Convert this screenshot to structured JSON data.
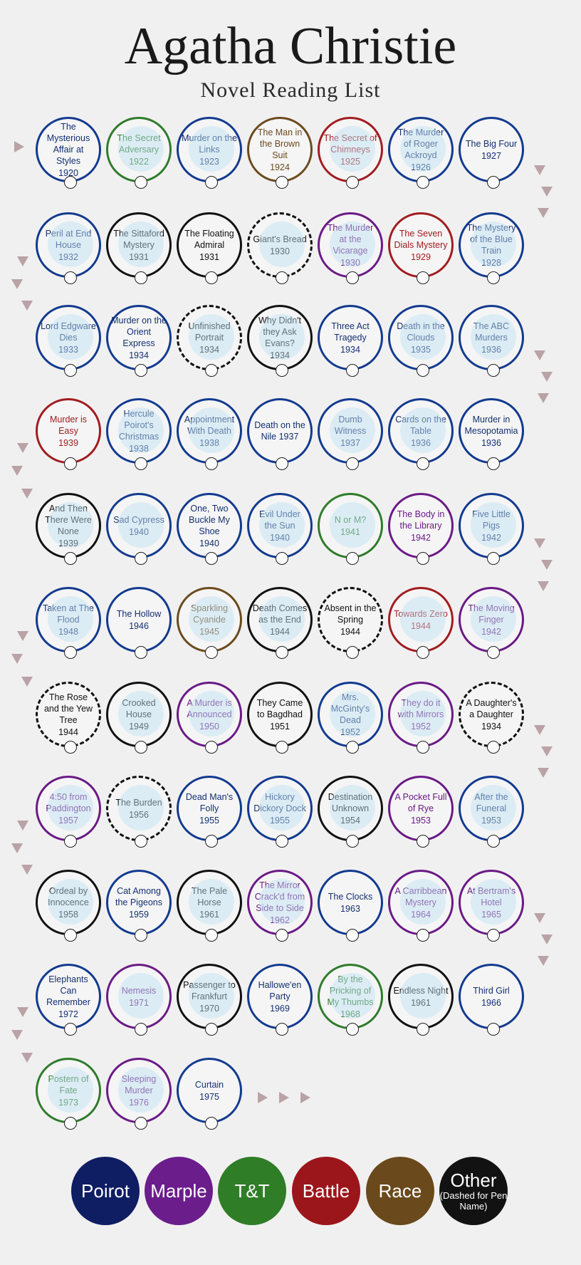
{
  "title": "Agatha Christie",
  "subtitle": "Novel Reading List",
  "books": [
    {
      "title": "The Mysterious Affair at Styles",
      "year": "1920",
      "series": "poirot"
    },
    {
      "title": "The Secret Adversary",
      "year": "1922",
      "series": "tt"
    },
    {
      "title": "Murder on the Links",
      "year": "1923",
      "series": "poirot"
    },
    {
      "title": "The Man in the Brown Suit",
      "year": "1924",
      "series": "race"
    },
    {
      "title": "The Secret of Chimneys",
      "year": "1925",
      "series": "battle"
    },
    {
      "title": "The Murder of Roger Ackroyd",
      "year": "1926",
      "series": "poirot"
    },
    {
      "title": "The Big Four",
      "year": "1927",
      "series": "poirot"
    },
    {
      "title": "Peril at End House",
      "year": "1932",
      "series": "poirot"
    },
    {
      "title": "The Sittaford Mystery",
      "year": "1931",
      "series": "other"
    },
    {
      "title": "The Floating Admiral",
      "year": "1931",
      "series": "other"
    },
    {
      "title": "Giant's Bread",
      "year": "1930",
      "series": "other",
      "dashed": true
    },
    {
      "title": "The Murder at the Vicarage",
      "year": "1930",
      "series": "marple"
    },
    {
      "title": "The Seven Dials Mystery",
      "year": "1929",
      "series": "battle"
    },
    {
      "title": "The Mystery of the Blue Train",
      "year": "1928",
      "series": "poirot"
    },
    {
      "title": "Lord Edgware Dies",
      "year": "1933",
      "series": "poirot"
    },
    {
      "title": "Murder on the Orient Express",
      "year": "1934",
      "series": "poirot"
    },
    {
      "title": "Unfinished Portrait",
      "year": "1934",
      "series": "other",
      "dashed": true
    },
    {
      "title": "Why Didn't they Ask Evans?",
      "year": "1934",
      "series": "other"
    },
    {
      "title": "Three Act Tragedy",
      "year": "1934",
      "series": "poirot"
    },
    {
      "title": "Death in the Clouds",
      "year": "1935",
      "series": "poirot"
    },
    {
      "title": "The ABC Murders",
      "year": "1936",
      "series": "poirot"
    },
    {
      "title": "Murder is Easy",
      "year": "1939",
      "series": "battle"
    },
    {
      "title": "Hercule Poirot's Christmas",
      "year": "1938",
      "series": "poirot"
    },
    {
      "title": "Appointment With Death",
      "year": "1938",
      "series": "poirot"
    },
    {
      "title": "Death on the Nile 1937",
      "year": "",
      "series": "poirot"
    },
    {
      "title": "Dumb Witness",
      "year": "1937",
      "series": "poirot"
    },
    {
      "title": "Cards on the Table",
      "year": "1936",
      "series": "poirot"
    },
    {
      "title": "Murder in Mesopotamia",
      "year": "1936",
      "series": "poirot"
    },
    {
      "title": "And Then There Were None",
      "year": "1939",
      "series": "other"
    },
    {
      "title": "Sad Cypress",
      "year": "1940",
      "series": "poirot"
    },
    {
      "title": "One, Two Buckle My Shoe",
      "year": "1940",
      "series": "poirot"
    },
    {
      "title": "Evil Under the Sun",
      "year": "1940",
      "series": "poirot"
    },
    {
      "title": "N or M?",
      "year": "1941",
      "series": "tt"
    },
    {
      "title": "The Body in the Library",
      "year": "1942",
      "series": "marple"
    },
    {
      "title": "Five Little Pigs",
      "year": "1942",
      "series": "poirot"
    },
    {
      "title": "Taken at The Flood",
      "year": "1948",
      "series": "poirot"
    },
    {
      "title": "The Hollow",
      "year": "1946",
      "series": "poirot"
    },
    {
      "title": "Sparkling Cyanide",
      "year": "1945",
      "series": "race"
    },
    {
      "title": "Death Comes as the End",
      "year": "1944",
      "series": "other"
    },
    {
      "title": "Absent in the Spring",
      "year": "1944",
      "series": "other",
      "dashed": true
    },
    {
      "title": "Towards Zero",
      "year": "1944",
      "series": "battle"
    },
    {
      "title": "The Moving Finger",
      "year": "1942",
      "series": "marple"
    },
    {
      "title": "The Rose and the Yew Tree",
      "year": "1944",
      "series": "other",
      "dashed": true
    },
    {
      "title": "Crooked House",
      "year": "1949",
      "series": "other"
    },
    {
      "title": "A Murder is Announced",
      "year": "1950",
      "series": "marple"
    },
    {
      "title": "They Came to Bagdhad",
      "year": "1951",
      "series": "other"
    },
    {
      "title": "Mrs. McGinty's Dead",
      "year": "1952",
      "series": "poirot"
    },
    {
      "title": "They do it with Mirrors",
      "year": "1952",
      "series": "marple"
    },
    {
      "title": "A Daughter's a Daughter",
      "year": "1934",
      "series": "other",
      "dashed": true
    },
    {
      "title": "4:50 from Paddington",
      "year": "1957",
      "series": "marple"
    },
    {
      "title": "The Burden",
      "year": "1956",
      "series": "other",
      "dashed": true
    },
    {
      "title": "Dead Man's Folly",
      "year": "1955",
      "series": "poirot"
    },
    {
      "title": "Hickory Dickory Dock",
      "year": "1955",
      "series": "poirot"
    },
    {
      "title": "Destination Unknown",
      "year": "1954",
      "series": "other"
    },
    {
      "title": "A Pocket Full of Rye",
      "year": "1953",
      "series": "marple"
    },
    {
      "title": "After the Funeral",
      "year": "1953",
      "series": "poirot"
    },
    {
      "title": "Ordeal by Innocence",
      "year": "1958",
      "series": "other"
    },
    {
      "title": "Cat Among the Pigeons",
      "year": "1959",
      "series": "poirot"
    },
    {
      "title": "The Pale Horse",
      "year": "1961",
      "series": "other"
    },
    {
      "title": "The Mirror Crack'd from Side to Side",
      "year": "1962",
      "series": "marple"
    },
    {
      "title": "The Clocks",
      "year": "1963",
      "series": "poirot"
    },
    {
      "title": "A Carribbean Mystery",
      "year": "1964",
      "series": "marple"
    },
    {
      "title": "At Bertram's Hotel",
      "year": "1965",
      "series": "marple"
    },
    {
      "title": "Elephants Can Remember",
      "year": "1972",
      "series": "poirot"
    },
    {
      "title": "Nemesis",
      "year": "1971",
      "series": "marple"
    },
    {
      "title": "Passenger to Frankfurt",
      "year": "1970",
      "series": "other"
    },
    {
      "title": "Hallowe'en Party",
      "year": "1969",
      "series": "poirot"
    },
    {
      "title": "By the Pricking of My Thumbs",
      "year": "1968",
      "series": "tt"
    },
    {
      "title": "Endless Night",
      "year": "1961",
      "series": "other"
    },
    {
      "title": "Third Girl",
      "year": "1966",
      "series": "poirot"
    },
    {
      "title": "Postern of Fate",
      "year": "1973",
      "series": "tt"
    },
    {
      "title": "Sleeping Murder",
      "year": "1976",
      "series": "marple"
    },
    {
      "title": "Curtain",
      "year": "1975",
      "series": "poirot"
    }
  ],
  "legend": [
    {
      "label": "Poirot",
      "note": "",
      "color": "#0f1d63"
    },
    {
      "label": "Marple",
      "note": "",
      "color": "#6b1d8c"
    },
    {
      "label": "T&T",
      "note": "",
      "color": "#2f7d27"
    },
    {
      "label": "Battle",
      "note": "",
      "color": "#9b161b"
    },
    {
      "label": "Race",
      "note": "",
      "color": "#6a4a1c"
    },
    {
      "label": "Other",
      "note": "(Dashed for Pen Name)",
      "color": "#121212"
    }
  ]
}
